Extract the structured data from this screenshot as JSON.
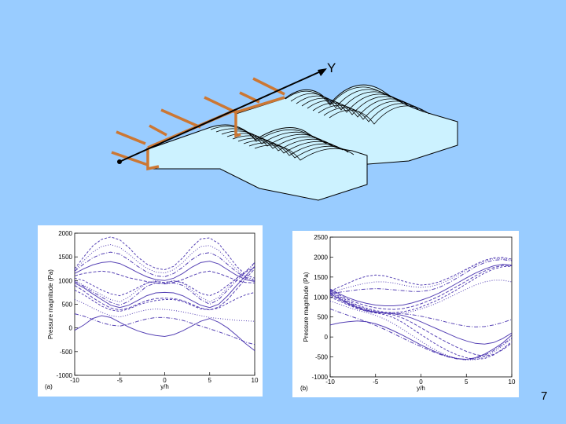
{
  "slide": {
    "background": "#99ccff",
    "page_number": "7"
  },
  "schematic": {
    "axis_label": "Y",
    "surface_fill": "#ccf2ff",
    "strut_color": "#cc7733"
  },
  "chart_data": [
    {
      "type": "line",
      "panel_label": "(a)",
      "xlabel": "y/h",
      "ylabel": "Pressure magnitude (Pa)",
      "xlim": [
        -10,
        10
      ],
      "ylim": [
        -1000,
        2000
      ],
      "xticks": [
        "-10",
        "-5",
        "0",
        "5",
        "10"
      ],
      "yticks": [
        "-1000",
        "-500",
        "0",
        "500",
        "1000",
        "1500",
        "2000"
      ],
      "line_color": "#3a22a8",
      "grid": false,
      "x": [
        -10,
        -9,
        -8,
        -7,
        -6,
        -5,
        -4,
        -3,
        -2,
        -1,
        0,
        1,
        2,
        3,
        4,
        5,
        6,
        7,
        8,
        9,
        10
      ],
      "series": [
        {
          "values": [
            1250,
            1500,
            1730,
            1870,
            1920,
            1860,
            1700,
            1500,
            1350,
            1260,
            1230,
            1300,
            1480,
            1700,
            1880,
            1900,
            1780,
            1550,
            1300,
            1120,
            1050
          ]
        },
        {
          "values": [
            1220,
            1420,
            1600,
            1720,
            1760,
            1700,
            1560,
            1400,
            1260,
            1180,
            1160,
            1230,
            1380,
            1570,
            1720,
            1740,
            1640,
            1440,
            1230,
            1080,
            1020
          ]
        },
        {
          "values": [
            1200,
            1350,
            1480,
            1560,
            1600,
            1560,
            1440,
            1300,
            1180,
            1100,
            1080,
            1150,
            1280,
            1440,
            1560,
            1590,
            1500,
            1340,
            1180,
            1060,
            1000
          ]
        },
        {
          "values": [
            1150,
            1250,
            1330,
            1380,
            1400,
            1360,
            1270,
            1170,
            1080,
            1020,
            1000,
            1050,
            1150,
            1280,
            1380,
            1410,
            1350,
            1230,
            1110,
            1020,
            980
          ]
        },
        {
          "values": [
            1100,
            1150,
            1180,
            1200,
            1180,
            1120,
            1060,
            1020,
            980,
            950,
            940,
            960,
            1020,
            1100,
            1170,
            1200,
            1150,
            1080,
            1000,
            960,
            950
          ]
        },
        {
          "values": [
            1050,
            1000,
            900,
            800,
            720,
            680,
            750,
            850,
            950,
            980,
            960,
            990,
            960,
            850,
            730,
            680,
            760,
            900,
            1050,
            1180,
            1280
          ]
        },
        {
          "values": [
            1000,
            900,
            800,
            700,
            600,
            550,
            650,
            800,
            950,
            1000,
            950,
            1000,
            950,
            800,
            650,
            550,
            650,
            850,
            1050,
            1200,
            1350
          ]
        },
        {
          "values": [
            980,
            880,
            760,
            650,
            540,
            480,
            560,
            720,
            880,
            950,
            930,
            950,
            900,
            760,
            600,
            500,
            600,
            800,
            1000,
            1180,
            1380
          ]
        },
        {
          "values": [
            950,
            850,
            720,
            600,
            480,
            430,
            480,
            580,
            680,
            740,
            750,
            740,
            680,
            580,
            480,
            430,
            500,
            680,
            900,
            1100,
            1300
          ]
        },
        {
          "values": [
            900,
            780,
            640,
            520,
            420,
            380,
            420,
            500,
            580,
            620,
            630,
            620,
            580,
            500,
            420,
            380,
            440,
            600,
            820,
            1040,
            1250
          ]
        },
        {
          "values": [
            800,
            700,
            580,
            460,
            380,
            350,
            400,
            480,
            540,
            580,
            600,
            600,
            560,
            480,
            400,
            380,
            420,
            520,
            620,
            700,
            750
          ]
        },
        {
          "values": [
            600,
            520,
            420,
            330,
            260,
            230,
            280,
            340,
            380,
            400,
            390,
            370,
            340,
            300,
            260,
            220,
            200,
            180,
            160,
            150,
            140
          ]
        },
        {
          "values": [
            300,
            250,
            180,
            110,
            60,
            40,
            80,
            140,
            190,
            220,
            220,
            200,
            160,
            100,
            40,
            -20,
            -80,
            -150,
            -220,
            -300,
            -350
          ]
        },
        {
          "values": [
            -50,
            60,
            200,
            260,
            220,
            120,
            20,
            -60,
            -120,
            -160,
            -180,
            -140,
            -60,
            40,
            140,
            200,
            120,
            0,
            -160,
            -330,
            -480
          ]
        }
      ]
    },
    {
      "type": "line",
      "panel_label": "(b)",
      "xlabel": "y/h",
      "ylabel": "Pressure magnitude (Pa)",
      "xlim": [
        -10,
        10
      ],
      "ylim": [
        -1000,
        2500
      ],
      "xticks": [
        "-10",
        "-5",
        "0",
        "5",
        "10"
      ],
      "yticks": [
        "-1000",
        "-500",
        "0",
        "500",
        "1000",
        "1500",
        "2000",
        "2500"
      ],
      "line_color": "#3a22a8",
      "grid": false,
      "x": [
        -10,
        -9,
        -8,
        -7,
        -6,
        -5,
        -4,
        -3,
        -2,
        -1,
        0,
        1,
        2,
        3,
        4,
        5,
        6,
        7,
        8,
        9,
        10
      ],
      "series": [
        {
          "values": [
            1150,
            1250,
            1350,
            1450,
            1520,
            1550,
            1530,
            1470,
            1400,
            1340,
            1300,
            1320,
            1380,
            1470,
            1580,
            1700,
            1820,
            1920,
            1980,
            1990,
            1950
          ]
        },
        {
          "values": [
            1120,
            1180,
            1240,
            1300,
            1350,
            1380,
            1380,
            1350,
            1300,
            1260,
            1240,
            1260,
            1320,
            1420,
            1540,
            1680,
            1800,
            1900,
            1960,
            1970,
            1920
          ]
        },
        {
          "values": [
            1100,
            1120,
            1150,
            1180,
            1200,
            1210,
            1200,
            1180,
            1160,
            1140,
            1140,
            1170,
            1240,
            1350,
            1480,
            1620,
            1760,
            1860,
            1920,
            1940,
            1900
          ]
        },
        {
          "values": [
            1200,
            1080,
            980,
            900,
            840,
            800,
            780,
            780,
            800,
            850,
            920,
            1000,
            1100,
            1220,
            1350,
            1480,
            1600,
            1700,
            1780,
            1820,
            1800
          ]
        },
        {
          "values": [
            1180,
            1050,
            940,
            850,
            780,
            730,
            700,
            690,
            710,
            760,
            830,
            920,
            1020,
            1140,
            1270,
            1400,
            1530,
            1650,
            1740,
            1790,
            1780
          ]
        },
        {
          "values": [
            1150,
            1020,
            900,
            800,
            720,
            660,
            620,
            610,
            630,
            680,
            750,
            840,
            940,
            1060,
            1190,
            1330,
            1470,
            1600,
            1700,
            1760,
            1770
          ]
        },
        {
          "values": [
            1130,
            1000,
            880,
            780,
            700,
            640,
            600,
            590,
            600,
            640,
            700,
            780,
            870,
            980,
            1090,
            1200,
            1300,
            1380,
            1420,
            1420,
            1380
          ]
        },
        {
          "values": [
            1100,
            980,
            860,
            760,
            680,
            630,
            600,
            590,
            580,
            560,
            520,
            470,
            420,
            360,
            310,
            270,
            250,
            260,
            300,
            360,
            440
          ]
        },
        {
          "values": [
            1080,
            960,
            840,
            740,
            670,
            620,
            600,
            580,
            540,
            470,
            380,
            280,
            180,
            80,
            -20,
            -100,
            -160,
            -180,
            -140,
            -40,
            100
          ]
        },
        {
          "values": [
            1050,
            930,
            820,
            720,
            650,
            610,
            590,
            550,
            470,
            360,
            230,
            100,
            -30,
            -150,
            -260,
            -360,
            -440,
            -480,
            -440,
            -320,
            -150
          ]
        },
        {
          "values": [
            1000,
            900,
            800,
            710,
            640,
            600,
            560,
            480,
            360,
            210,
            60,
            -90,
            -230,
            -350,
            -450,
            -520,
            -560,
            -540,
            -450,
            -300,
            -120
          ]
        },
        {
          "values": [
            900,
            820,
            740,
            670,
            610,
            540,
            450,
            330,
            190,
            40,
            -110,
            -250,
            -370,
            -470,
            -540,
            -580,
            -570,
            -500,
            -380,
            -220,
            -40
          ]
        },
        {
          "values": [
            700,
            620,
            540,
            460,
            380,
            290,
            190,
            80,
            -30,
            -140,
            -240,
            -340,
            -430,
            -500,
            -550,
            -570,
            -540,
            -460,
            -340,
            -190,
            -20
          ]
        },
        {
          "values": [
            300,
            350,
            380,
            400,
            380,
            330,
            250,
            150,
            40,
            -80,
            -200,
            -310,
            -410,
            -490,
            -540,
            -560,
            -520,
            -430,
            -300,
            -150,
            50
          ]
        }
      ]
    }
  ]
}
